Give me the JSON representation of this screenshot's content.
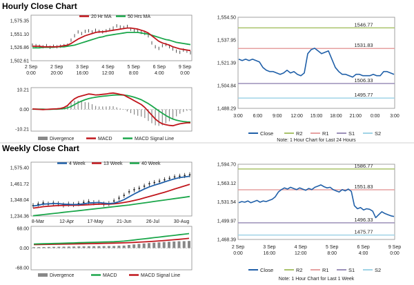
{
  "titles": {
    "hourly": "Hourly Close Chart",
    "weekly": "Weekly Close Chart"
  },
  "colors": {
    "close": "#1f5fa8",
    "ma_short": "#c0151b",
    "ma_long": "#1aa64a",
    "bar_up": "#2a2a2a",
    "divergence": "#888888",
    "r2": "#a9c26a",
    "r1": "#e6a0a0",
    "s1": "#9b8fb8",
    "s2": "#9fd3e6"
  },
  "chart_data": [
    {
      "id": "hourly-price",
      "type": "line",
      "legend": [
        "20 Hr MA",
        "50 Hrs MA"
      ],
      "yticks": [
        "1,575.35",
        "1,551.10",
        "1,526.86",
        "1,502.61"
      ],
      "ylim": [
        1502.61,
        1575.35
      ],
      "xticks": [
        [
          "2 Sep",
          "0:00"
        ],
        [
          "2 Sep",
          "20:00"
        ],
        [
          "3 Sep",
          "16:00"
        ],
        [
          "4 Sep",
          "12:00"
        ],
        [
          "5 Sep",
          "8:00"
        ],
        [
          "6 Sep",
          "4:00"
        ],
        [
          "9 Sep",
          "0:00"
        ]
      ],
      "series": [
        {
          "name": "Close",
          "values": [
            1531,
            1530,
            1529,
            1528,
            1530,
            1527,
            1529,
            1528,
            1529,
            1530,
            1531,
            1540,
            1548,
            1555,
            1552,
            1556,
            1557,
            1555,
            1558,
            1556,
            1555,
            1557,
            1559,
            1562,
            1566,
            1564,
            1563,
            1565,
            1560,
            1558,
            1556,
            1554,
            1552,
            1548,
            1535,
            1528,
            1525,
            1530,
            1532,
            1528,
            1524,
            1520,
            1518,
            1522,
            1520,
            1517
          ]
        },
        {
          "name": "20 Hr MA",
          "values": [
            1529,
            1529,
            1529,
            1528,
            1528,
            1528,
            1528,
            1528,
            1529,
            1530,
            1531,
            1534,
            1538,
            1542,
            1545,
            1548,
            1550,
            1552,
            1554,
            1555,
            1555,
            1556,
            1557,
            1558,
            1559,
            1560,
            1561,
            1562,
            1562,
            1561,
            1560,
            1558,
            1556,
            1553,
            1548,
            1543,
            1538,
            1535,
            1533,
            1531,
            1528,
            1526,
            1524,
            1523,
            1522,
            1521
          ]
        },
        {
          "name": "50 Hrs MA",
          "values": [
            1526,
            1526,
            1526,
            1527,
            1527,
            1527,
            1527,
            1528,
            1528,
            1528,
            1529,
            1530,
            1531,
            1533,
            1535,
            1537,
            1539,
            1541,
            1543,
            1545,
            1546,
            1548,
            1549,
            1550,
            1551,
            1552,
            1553,
            1554,
            1554,
            1554,
            1554,
            1553,
            1552,
            1551,
            1549,
            1547,
            1545,
            1543,
            1541,
            1540,
            1538,
            1536,
            1535,
            1534,
            1533,
            1532
          ]
        }
      ]
    },
    {
      "id": "hourly-macd",
      "type": "line",
      "legend": [
        "Divergence",
        "MACD",
        "MACD Signal Line"
      ],
      "yticks": [
        "10.21",
        "0.00",
        "-10.21"
      ],
      "ylim": [
        -10.21,
        10.21
      ],
      "series": [
        {
          "name": "MACD",
          "values": [
            0.2,
            0.1,
            0,
            -0.1,
            0,
            0.1,
            0.2,
            0.3,
            0.5,
            1,
            2,
            4,
            5.5,
            6.5,
            7,
            7.5,
            8,
            7.8,
            7.5,
            7.6,
            7.8,
            8,
            8.3,
            8.5,
            8.2,
            7.8,
            7.5,
            6.5,
            5.5,
            4.5,
            3.5,
            2.5,
            1,
            -1,
            -3,
            -5,
            -6.5,
            -7.5,
            -8,
            -8.3,
            -8.5,
            -8,
            -7.5,
            -7.2,
            -7,
            -7
          ]
        },
        {
          "name": "MACD Signal Line",
          "values": [
            0.1,
            0.1,
            0.1,
            0.1,
            0,
            0,
            0.1,
            0.1,
            0.2,
            0.4,
            0.8,
            1.5,
            2.5,
            3.5,
            4.3,
            5,
            5.6,
            6,
            6.3,
            6.6,
            6.8,
            7,
            7.2,
            7.4,
            7.5,
            7.5,
            7.4,
            7.2,
            6.8,
            6.3,
            5.7,
            5,
            4,
            3,
            1.8,
            0.5,
            -0.8,
            -2,
            -3.2,
            -4.2,
            -5,
            -5.6,
            -6,
            -6.3,
            -6.5,
            -6.6
          ]
        }
      ]
    },
    {
      "id": "hourly-levels",
      "type": "line",
      "note": "Note: 1 Hour Chart for Last 24 Hours",
      "yticks": [
        "1,554.50",
        "1,537.95",
        "1,521.39",
        "1,504.84",
        "1,488.29"
      ],
      "ylim": [
        1488.29,
        1554.5
      ],
      "xticks": [
        "3:00",
        "6:00",
        "9:00",
        "12:00",
        "15:00",
        "18:00",
        "21:00",
        "0:00",
        "3:00"
      ],
      "legend": [
        "Close",
        "R2",
        "R1",
        "S1",
        "S2"
      ],
      "levels": {
        "R2": "1546.77",
        "R1": "1531.83",
        "S1": "1506.33",
        "S2": "1495.77"
      },
      "level_values": {
        "R2": 1546.77,
        "R1": 1531.83,
        "S1": 1506.33,
        "S2": 1495.77
      },
      "series": [
        {
          "name": "Close",
          "values": [
            1524,
            1523,
            1524,
            1523,
            1524,
            1523,
            1522,
            1518,
            1516,
            1515,
            1515,
            1514,
            1513,
            1514,
            1516,
            1514,
            1515,
            1513,
            1512,
            1514,
            1528,
            1531,
            1532,
            1530,
            1528,
            1529,
            1530,
            1524,
            1518,
            1515,
            1513,
            1513,
            1512,
            1511,
            1513,
            1513,
            1512,
            1512,
            1512,
            1513,
            1512,
            1512,
            1515,
            1515,
            1514,
            1513
          ]
        }
      ]
    },
    {
      "id": "weekly-price",
      "type": "line",
      "legend": [
        "4 Week",
        "13 Week",
        "40 Week"
      ],
      "yticks": [
        "1,575.40",
        "1,461.72",
        "1,348.04",
        "1,234.36"
      ],
      "ylim": [
        1234.36,
        1575.4
      ],
      "xticks": [
        "8-Mar",
        "12-Apr",
        "17-May",
        "21-Jun",
        "26-Jul",
        "30-Aug"
      ],
      "series": [
        {
          "name": "Close",
          "values": [
            1308,
            1318,
            1326,
            1318,
            1325,
            1320,
            1312,
            1318,
            1315,
            1322,
            1330,
            1335,
            1328,
            1330,
            1318,
            1322,
            1340,
            1360,
            1380,
            1405,
            1420,
            1430,
            1445,
            1462,
            1470,
            1480,
            1490,
            1500,
            1510,
            1515,
            1520,
            1525
          ]
        },
        {
          "name": "4 Week",
          "values": [
            1305,
            1310,
            1318,
            1320,
            1322,
            1322,
            1318,
            1316,
            1315,
            1316,
            1320,
            1326,
            1328,
            1330,
            1325,
            1322,
            1325,
            1335,
            1350,
            1370,
            1390,
            1408,
            1425,
            1440,
            1452,
            1463,
            1475,
            1486,
            1497,
            1505,
            1510,
            1515
          ]
        },
        {
          "name": "13 Week",
          "values": [
            1290,
            1295,
            1300,
            1303,
            1306,
            1308,
            1309,
            1310,
            1310,
            1311,
            1312,
            1314,
            1316,
            1318,
            1318,
            1318,
            1320,
            1324,
            1330,
            1336,
            1344,
            1352,
            1362,
            1372,
            1382,
            1392,
            1402,
            1413,
            1425,
            1436,
            1447,
            1458
          ]
        },
        {
          "name": "40 Week",
          "values": [
            1236,
            1240,
            1244,
            1248,
            1252,
            1256,
            1260,
            1264,
            1268,
            1272,
            1276,
            1280,
            1284,
            1288,
            1292,
            1296,
            1300,
            1304,
            1308,
            1312,
            1317,
            1322,
            1327,
            1332,
            1337,
            1342,
            1347,
            1352,
            1357,
            1362,
            1367,
            1372
          ]
        }
      ]
    },
    {
      "id": "weekly-macd",
      "type": "line",
      "legend": [
        "Divergence",
        "MACD",
        "MACD Signal Line"
      ],
      "yticks": [
        "68.00",
        "0.00",
        "-68.00"
      ],
      "ylim": [
        -68,
        68
      ],
      "series": [
        {
          "name": "MACD",
          "values": [
            14,
            14.5,
            15,
            15.5,
            16,
            16.5,
            17,
            17.5,
            18,
            18.5,
            19,
            19.5,
            20,
            20.5,
            21,
            21.5,
            22,
            23,
            24,
            26,
            28,
            30,
            32,
            34,
            36,
            38,
            40,
            42,
            44,
            46,
            48,
            50
          ]
        },
        {
          "name": "MACD Signal Line",
          "values": [
            12,
            12.3,
            12.6,
            12.9,
            13.2,
            13.5,
            13.8,
            14.1,
            14.4,
            14.7,
            15,
            15.3,
            15.6,
            16,
            16.4,
            16.8,
            17.2,
            17.6,
            18.2,
            18.8,
            19.6,
            20.4,
            21.4,
            22.4,
            23.6,
            24.8,
            26,
            27.4,
            28.8,
            30.4,
            32,
            33.6
          ]
        }
      ]
    },
    {
      "id": "weekly-levels",
      "type": "line",
      "note": "Note: 1 Hour Chart for Last 1 Week",
      "yticks": [
        "1,594.70",
        "1,563.12",
        "1,531.54",
        "1,499.97",
        "1,468.39"
      ],
      "ylim": [
        1468.39,
        1594.7
      ],
      "xticks": [
        [
          "2 Sep",
          "0:00"
        ],
        [
          "3 Sep",
          "16:00"
        ],
        [
          "4 Sep",
          "12:00"
        ],
        [
          "5 Sep",
          "8:00"
        ],
        [
          "6 Sep",
          "4:00"
        ],
        [
          "9 Sep",
          "0:00"
        ]
      ],
      "legend": [
        "Close",
        "R2",
        "R1",
        "S1",
        "S2"
      ],
      "levels": {
        "R2": "1586.77",
        "R1": "1551.83",
        "S1": "1496.33",
        "S2": "1475.77"
      },
      "level_values": {
        "R2": 1586.77,
        "R1": 1551.83,
        "S1": 1496.33,
        "S2": 1475.77
      },
      "series": [
        {
          "name": "Close",
          "values": [
            1530,
            1532,
            1531,
            1533,
            1530,
            1532,
            1534,
            1531,
            1533,
            1532,
            1534,
            1536,
            1540,
            1548,
            1552,
            1555,
            1553,
            1556,
            1554,
            1552,
            1555,
            1553,
            1551,
            1554,
            1552,
            1556,
            1558,
            1560,
            1557,
            1555,
            1556,
            1552,
            1550,
            1548,
            1552,
            1550,
            1553,
            1549,
            1525,
            1520,
            1522,
            1518,
            1520,
            1519,
            1516,
            1505,
            1510,
            1515,
            1512,
            1510,
            1508,
            1507
          ]
        }
      ]
    }
  ]
}
